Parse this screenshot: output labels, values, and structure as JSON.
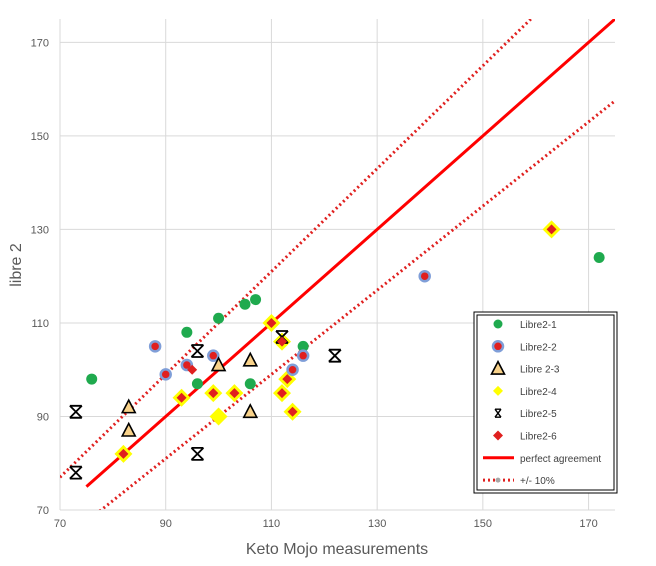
{
  "chart_data": {
    "type": "scatter",
    "title": "",
    "xlabel": "Keto Mojo measurements",
    "ylabel": "libre 2",
    "xlim": [
      70,
      175
    ],
    "ylim": [
      70,
      175
    ],
    "xticks": [
      "70",
      "90",
      "110",
      "130",
      "150",
      "170"
    ],
    "yticks": [
      "70",
      "90",
      "110",
      "130",
      "150",
      "170"
    ],
    "grid": "horizontal and vertical",
    "legend_position": "right",
    "series": [
      {
        "name": "Libre2-1",
        "marker": "circle",
        "color": "#1faa4e",
        "points": [
          [
            76,
            98
          ],
          [
            94,
            108
          ],
          [
            96,
            97
          ],
          [
            100,
            111
          ],
          [
            105,
            114
          ],
          [
            106,
            97
          ],
          [
            107,
            115
          ],
          [
            116,
            105
          ],
          [
            172,
            124
          ]
        ]
      },
      {
        "name": "Libre2-2",
        "marker": "ringed-circle",
        "color": "#e0201f",
        "edge": "#7f9ed8",
        "points": [
          [
            88,
            105
          ],
          [
            90,
            99
          ],
          [
            94,
            101
          ],
          [
            99,
            103
          ],
          [
            114,
            100
          ],
          [
            116,
            103
          ],
          [
            139,
            120
          ]
        ]
      },
      {
        "name": "Libre 2-3",
        "marker": "triangle",
        "color": "#f8d28a",
        "edge": "#000000",
        "points": [
          [
            83,
            92
          ],
          [
            83,
            87
          ],
          [
            100,
            101
          ],
          [
            106,
            102
          ],
          [
            106,
            91
          ]
        ]
      },
      {
        "name": "Libre2-4",
        "marker": "diamond",
        "color": "#ffff00",
        "points": [
          [
            82,
            82
          ],
          [
            93,
            94
          ],
          [
            99,
            95
          ],
          [
            103,
            95
          ],
          [
            110,
            110
          ],
          [
            112,
            106
          ],
          [
            112,
            95
          ],
          [
            113,
            98
          ],
          [
            114,
            91
          ],
          [
            163,
            130
          ],
          [
            100,
            90
          ]
        ]
      },
      {
        "name": "Libre2-5",
        "marker": "asterisk",
        "color": "#000000",
        "points": [
          [
            73,
            91
          ],
          [
            73,
            78
          ],
          [
            96,
            104
          ],
          [
            96,
            82
          ],
          [
            112,
            107
          ],
          [
            122,
            103
          ]
        ]
      },
      {
        "name": "Libre2-6",
        "marker": "diamond",
        "color": "#e0201f",
        "points": [
          [
            82,
            82
          ],
          [
            93,
            94
          ],
          [
            95,
            100
          ],
          [
            99,
            95
          ],
          [
            103,
            95
          ],
          [
            110,
            110
          ],
          [
            112,
            106
          ],
          [
            112,
            95
          ],
          [
            113,
            98
          ],
          [
            114,
            91
          ],
          [
            163,
            130
          ]
        ]
      }
    ],
    "lines": [
      {
        "name": "perfect agreement",
        "style": "solid",
        "color": "#ff0000",
        "x": [
          75,
          175
        ],
        "y": [
          75,
          175
        ]
      },
      {
        "name": "+/- 10%",
        "style": "dotted",
        "color": "#e0201f",
        "upper": {
          "x": [
            70,
            175
          ],
          "y": [
            77,
            192.5
          ]
        },
        "lower": {
          "x": [
            76,
            175
          ],
          "y": [
            68.4,
            157.5
          ]
        }
      }
    ]
  }
}
